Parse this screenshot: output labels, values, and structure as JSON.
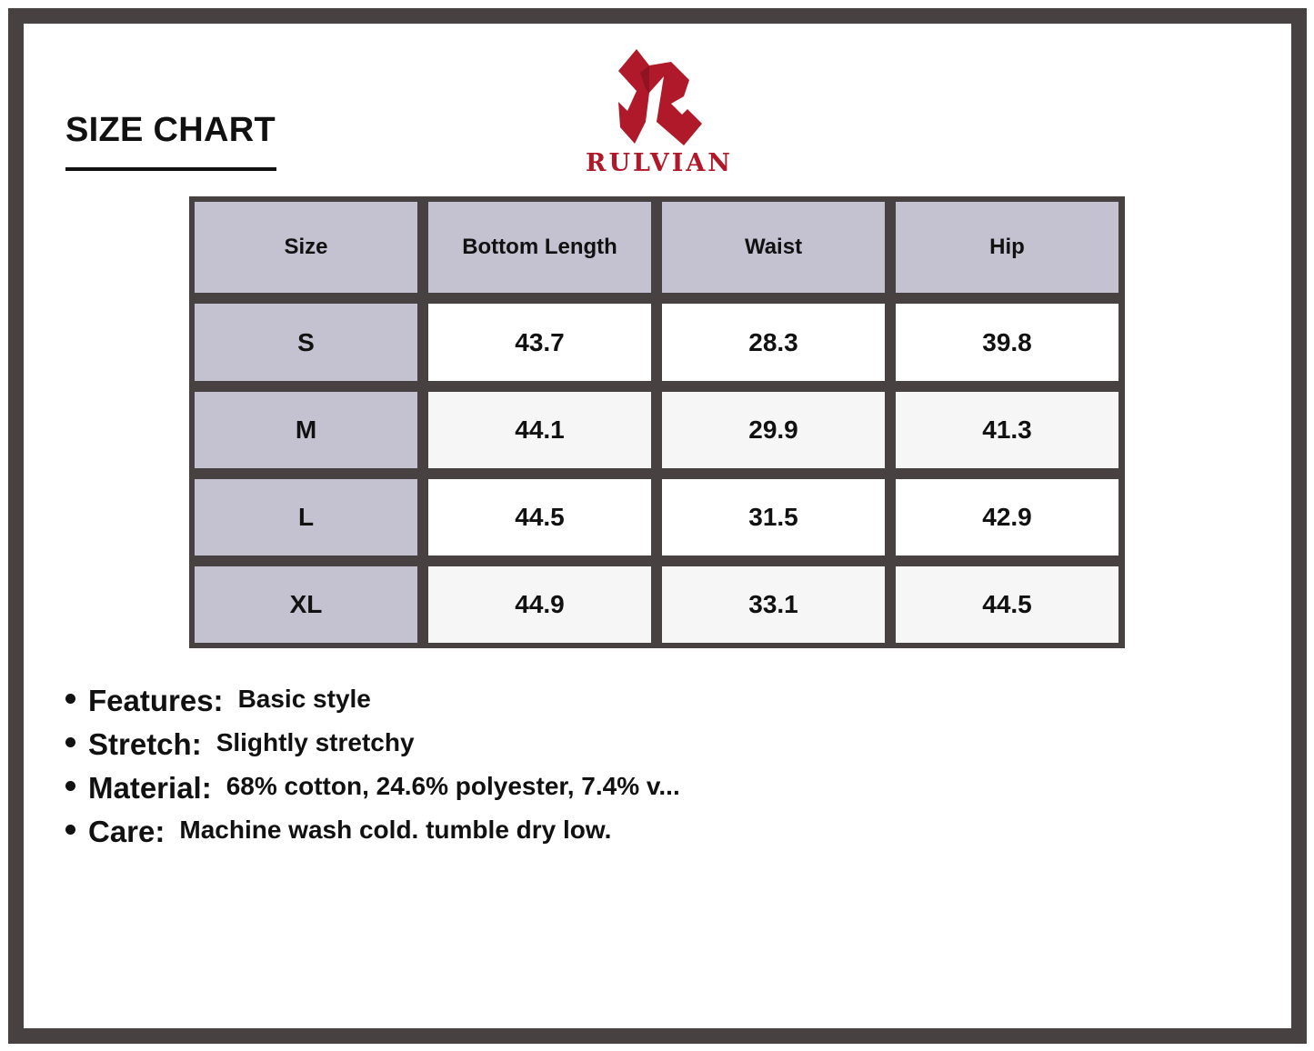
{
  "title": "SIZE CHART",
  "brand": {
    "name": "RULVIAN",
    "color": "#b0192a"
  },
  "table": {
    "headers": [
      "Size",
      "Bottom Length",
      "Waist",
      "Hip"
    ],
    "rows": [
      {
        "size": "S",
        "values": [
          "43.7",
          "28.3",
          "39.8"
        ]
      },
      {
        "size": "M",
        "values": [
          "44.1",
          "29.9",
          "41.3"
        ]
      },
      {
        "size": "L",
        "values": [
          "44.5",
          "31.5",
          "42.9"
        ]
      },
      {
        "size": "XL",
        "values": [
          "44.9",
          "33.1",
          "44.5"
        ]
      }
    ]
  },
  "features": [
    {
      "label": "Features:",
      "value": "Basic style"
    },
    {
      "label": "Stretch:",
      "value": "Slightly stretchy"
    },
    {
      "label": "Material:",
      "value": "68% cotton, 24.6% polyester, 7.4% v..."
    },
    {
      "label": "Care:",
      "value": "Machine wash cold. tumble dry low."
    }
  ],
  "colors": {
    "frame": "#474141",
    "header_fill": "#c4c2d1",
    "accent": "#b0192a"
  }
}
